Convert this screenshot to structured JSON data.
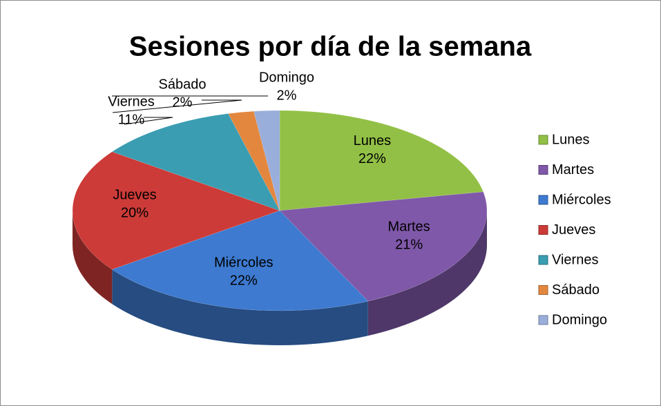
{
  "chart_data": {
    "type": "pie",
    "title": "Sesiones por día de la semana",
    "categories": [
      "Lunes",
      "Martes",
      "Miércoles",
      "Jueves",
      "Viernes",
      "Sábado",
      "Domingo"
    ],
    "values": [
      22,
      21,
      22,
      20,
      11,
      2,
      2
    ],
    "value_labels": [
      "22%",
      "21%",
      "22%",
      "20%",
      "11%",
      "2%",
      "2%"
    ],
    "colors": [
      "#92c046",
      "#7f58a9",
      "#3d7ad0",
      "#cc3b38",
      "#3a9db2",
      "#e3873f",
      "#9aaedb"
    ],
    "legend": "right"
  }
}
